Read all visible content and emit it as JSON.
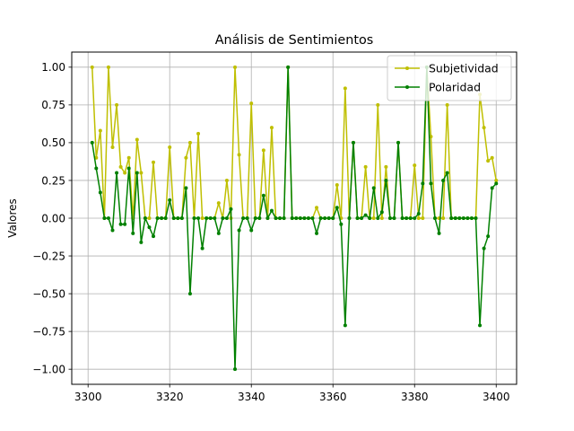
{
  "chart_data": {
    "type": "line",
    "title": "Análisis de Sentimientos",
    "xlabel": "",
    "ylabel": "Valores",
    "xlim": [
      3296,
      3405
    ],
    "ylim": [
      -1.1,
      1.1
    ],
    "grid": true,
    "legend_position": "top-right",
    "xticks": [
      3300,
      3320,
      3340,
      3360,
      3380,
      3400
    ],
    "yticks": [
      -1.0,
      -0.75,
      -0.5,
      -0.25,
      0.0,
      0.25,
      0.5,
      0.75,
      1.0
    ],
    "xtick_labels": [
      "3300",
      "3320",
      "3340",
      "3360",
      "3380",
      "3400"
    ],
    "ytick_labels": [
      "−1.00",
      "−0.75",
      "−0.50",
      "−0.25",
      "0.00",
      "0.25",
      "0.50",
      "0.75",
      "1.00"
    ],
    "x": [
      3301,
      3302,
      3303,
      3304,
      3305,
      3306,
      3307,
      3308,
      3309,
      3310,
      3311,
      3312,
      3313,
      3314,
      3315,
      3316,
      3317,
      3318,
      3319,
      3320,
      3321,
      3322,
      3323,
      3324,
      3325,
      3326,
      3327,
      3328,
      3329,
      3330,
      3331,
      3332,
      3333,
      3334,
      3335,
      3336,
      3337,
      3338,
      3339,
      3340,
      3341,
      3342,
      3343,
      3344,
      3345,
      3346,
      3347,
      3348,
      3349,
      3350,
      3351,
      3352,
      3353,
      3354,
      3355,
      3356,
      3357,
      3358,
      3359,
      3360,
      3361,
      3362,
      3363,
      3364,
      3365,
      3366,
      3367,
      3368,
      3369,
      3370,
      3371,
      3372,
      3373,
      3374,
      3375,
      3376,
      3377,
      3378,
      3379,
      3380,
      3381,
      3382,
      3383,
      3384,
      3385,
      3386,
      3387,
      3388,
      3389,
      3390,
      3391,
      3392,
      3393,
      3394,
      3395,
      3396,
      3397,
      3398,
      3399,
      3400
    ],
    "series": [
      {
        "name": "Subjetividad",
        "color": "#bfbf00",
        "values": [
          1.0,
          0.4,
          0.58,
          0.0,
          1.0,
          0.47,
          0.75,
          0.34,
          0.3,
          0.4,
          0.0,
          0.52,
          0.3,
          0.0,
          0.0,
          0.37,
          0.0,
          0.0,
          0.0,
          0.47,
          0.0,
          0.0,
          0.0,
          0.4,
          0.5,
          0.0,
          0.56,
          0.0,
          0.0,
          0.0,
          0.0,
          0.1,
          0.0,
          0.25,
          0.0,
          1.0,
          0.42,
          0.0,
          0.0,
          0.76,
          0.0,
          0.0,
          0.45,
          0.0,
          0.6,
          0.0,
          0.0,
          0.0,
          1.0,
          0.0,
          0.0,
          0.0,
          0.0,
          0.0,
          0.0,
          0.07,
          0.0,
          0.0,
          0.0,
          0.0,
          0.22,
          0.0,
          0.86,
          0.0,
          0.5,
          0.0,
          0.0,
          0.34,
          0.0,
          0.0,
          0.75,
          0.0,
          0.34,
          0.0,
          0.0,
          0.5,
          0.0,
          0.0,
          0.0,
          0.35,
          0.0,
          0.0,
          1.0,
          0.54,
          0.0,
          0.0,
          0.0,
          0.75,
          0.0,
          0.0,
          0.0,
          0.0,
          0.0,
          0.0,
          0.0,
          0.82,
          0.6,
          0.38,
          0.4,
          0.25
        ]
      },
      {
        "name": "Polaridad",
        "color": "#008000",
        "values": [
          0.5,
          0.33,
          0.17,
          0.0,
          0.0,
          -0.08,
          0.3,
          -0.04,
          -0.04,
          0.33,
          -0.1,
          0.3,
          -0.16,
          0.0,
          -0.06,
          -0.12,
          0.0,
          0.0,
          0.0,
          0.12,
          0.0,
          0.0,
          0.0,
          0.2,
          -0.5,
          0.0,
          0.0,
          -0.2,
          0.0,
          0.0,
          0.0,
          -0.1,
          0.0,
          0.0,
          0.06,
          -1.0,
          -0.08,
          0.0,
          0.0,
          -0.08,
          0.0,
          0.0,
          0.15,
          0.0,
          0.05,
          0.0,
          0.0,
          0.0,
          1.0,
          0.0,
          0.0,
          0.0,
          0.0,
          0.0,
          0.0,
          -0.1,
          0.0,
          0.0,
          0.0,
          0.0,
          0.07,
          -0.04,
          -0.71,
          0.0,
          0.5,
          0.0,
          0.0,
          0.02,
          0.0,
          0.2,
          0.0,
          0.04,
          0.25,
          0.0,
          0.0,
          0.5,
          0.0,
          0.0,
          0.0,
          0.0,
          0.03,
          0.23,
          1.0,
          0.23,
          0.0,
          -0.1,
          0.25,
          0.3,
          0.0,
          0.0,
          0.0,
          0.0,
          0.0,
          0.0,
          0.0,
          -0.71,
          -0.2,
          -0.12,
          0.2,
          0.23
        ]
      }
    ]
  }
}
